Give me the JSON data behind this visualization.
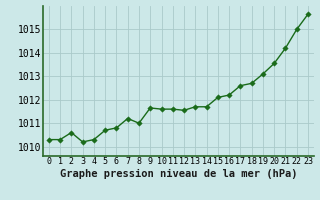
{
  "x": [
    0,
    1,
    2,
    3,
    4,
    5,
    6,
    7,
    8,
    9,
    10,
    11,
    12,
    13,
    14,
    15,
    16,
    17,
    18,
    19,
    20,
    21,
    22,
    23
  ],
  "y": [
    1010.3,
    1010.3,
    1010.6,
    1010.2,
    1010.3,
    1010.7,
    1010.8,
    1011.2,
    1011.0,
    1011.65,
    1011.6,
    1011.6,
    1011.55,
    1011.7,
    1011.7,
    1012.1,
    1012.2,
    1012.6,
    1012.7,
    1013.1,
    1013.55,
    1014.2,
    1015.0,
    1015.65
  ],
  "line_color": "#1a6b1a",
  "marker_color": "#1a6b1a",
  "bg_color": "#cce8e8",
  "grid_color": "#aacaca",
  "xlabel": "Graphe pression niveau de la mer (hPa)",
  "xlabel_fontsize": 7.5,
  "ylim": [
    1009.6,
    1016.0
  ],
  "yticks": [
    1010,
    1011,
    1012,
    1013,
    1014,
    1015
  ],
  "xticks": [
    0,
    1,
    2,
    3,
    4,
    5,
    6,
    7,
    8,
    9,
    10,
    11,
    12,
    13,
    14,
    15,
    16,
    17,
    18,
    19,
    20,
    21,
    22,
    23
  ],
  "ytick_fontsize": 7,
  "xtick_fontsize": 6,
  "line_width": 1.0,
  "marker_size": 2.8,
  "spine_color": "#2a6b2a"
}
